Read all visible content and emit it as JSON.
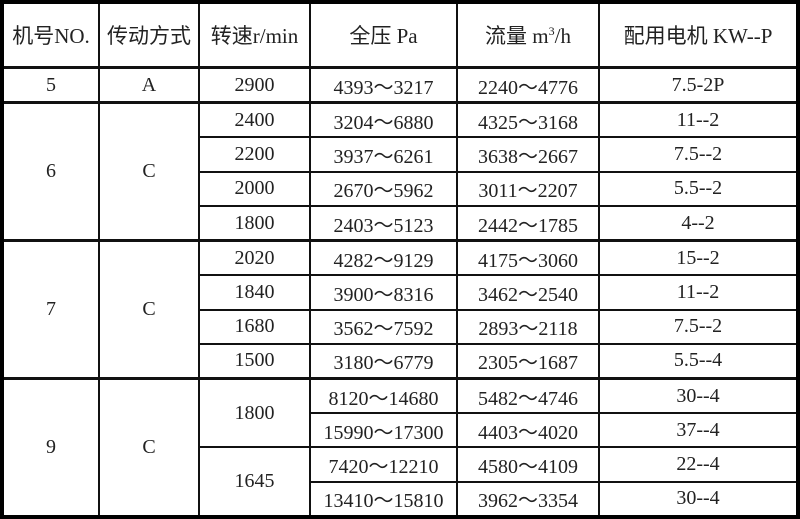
{
  "header": {
    "no": "机号NO.",
    "drive": "传动方式",
    "speed": "转速r/min",
    "pressure": "全压 Pa",
    "flow_prefix": "流量 m",
    "flow_sup": "3",
    "flow_suffix": "/h",
    "motor": "配用电机 KW--P"
  },
  "groups": [
    {
      "no": "5",
      "drive": "A",
      "speeds": [
        {
          "speed": "2900",
          "rows": [
            {
              "pressure": "4393～3217",
              "flow": "2240～4776",
              "motor": "7.5-2P"
            }
          ]
        }
      ]
    },
    {
      "no": "6",
      "drive": "C",
      "speeds": [
        {
          "speed": "2400",
          "rows": [
            {
              "pressure": "3204～6880",
              "flow": "4325～3168",
              "motor": "11--2"
            }
          ]
        },
        {
          "speed": "2200",
          "rows": [
            {
              "pressure": "3937～6261",
              "flow": "3638～2667",
              "motor": "7.5--2"
            }
          ]
        },
        {
          "speed": "2000",
          "rows": [
            {
              "pressure": "2670～5962",
              "flow": "3011～2207",
              "motor": "5.5--2"
            }
          ]
        },
        {
          "speed": "1800",
          "rows": [
            {
              "pressure": "2403～5123",
              "flow": "2442～1785",
              "motor": "4--2"
            }
          ]
        }
      ]
    },
    {
      "no": "7",
      "drive": "C",
      "speeds": [
        {
          "speed": "2020",
          "rows": [
            {
              "pressure": "4282～9129",
              "flow": "4175～3060",
              "motor": "15--2"
            }
          ]
        },
        {
          "speed": "1840",
          "rows": [
            {
              "pressure": "3900～8316",
              "flow": "3462～2540",
              "motor": "11--2"
            }
          ]
        },
        {
          "speed": "1680",
          "rows": [
            {
              "pressure": "3562～7592",
              "flow": "2893～2118",
              "motor": "7.5--2"
            }
          ]
        },
        {
          "speed": "1500",
          "rows": [
            {
              "pressure": "3180～6779",
              "flow": "2305～1687",
              "motor": "5.5--4"
            }
          ]
        }
      ]
    },
    {
      "no": "9",
      "drive": "C",
      "speeds": [
        {
          "speed": "1800",
          "rows": [
            {
              "pressure": "8120～14680",
              "flow": "5482～4746",
              "motor": "30--4"
            },
            {
              "pressure": "15990～17300",
              "flow": "4403～4020",
              "motor": "37--4"
            }
          ]
        },
        {
          "speed": "1645",
          "rows": [
            {
              "pressure": "7420～12210",
              "flow": "4580～4109",
              "motor": "22--4"
            },
            {
              "pressure": "13410～15810",
              "flow": "3962～3354",
              "motor": "30--4"
            }
          ]
        }
      ]
    }
  ]
}
